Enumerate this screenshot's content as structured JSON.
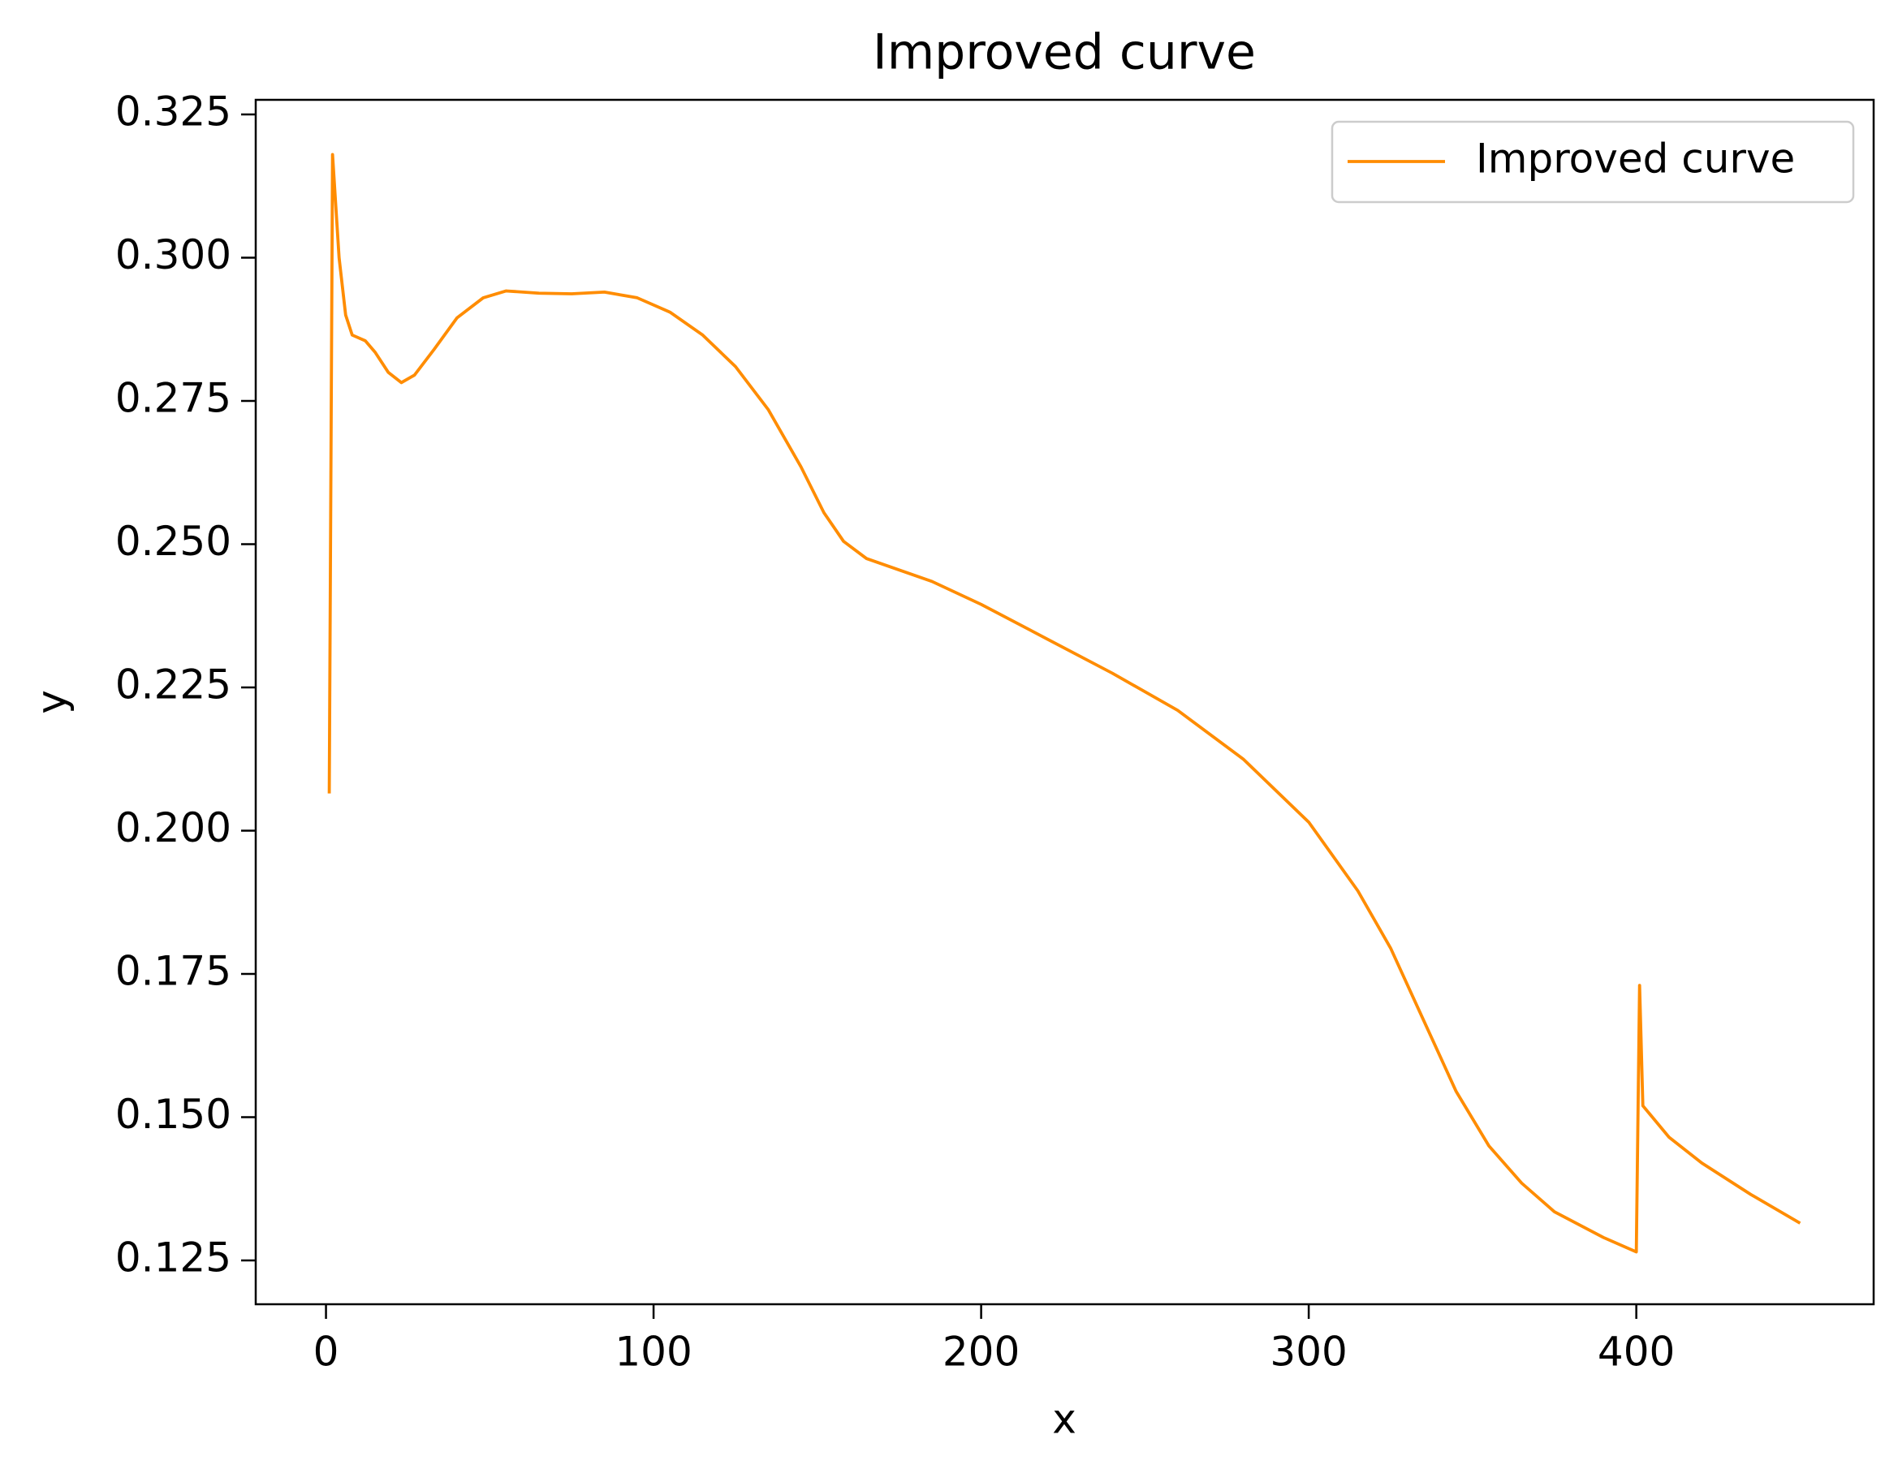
{
  "chart_data": {
    "type": "line",
    "title": "Improved curve",
    "xlabel": "x",
    "ylabel": "y",
    "x": [
      1,
      2,
      4,
      6,
      8,
      12,
      15,
      19,
      23,
      27,
      33,
      40,
      48,
      55,
      65,
      75,
      85,
      95,
      105,
      115,
      125,
      135,
      145,
      152,
      158,
      165,
      175,
      185,
      200,
      220,
      240,
      260,
      280,
      300,
      315,
      325,
      335,
      345,
      355,
      365,
      375,
      390,
      400,
      401,
      402,
      410,
      420,
      435,
      450
    ],
    "series": [
      {
        "name": "Improved curve",
        "color": "#ff8c00",
        "values": [
          0.2065,
          0.318,
          0.3,
          0.29,
          0.2865,
          0.2855,
          0.2835,
          0.28,
          0.2782,
          0.2795,
          0.284,
          0.2895,
          0.293,
          0.2942,
          0.2938,
          0.2937,
          0.294,
          0.293,
          0.2905,
          0.2865,
          0.281,
          0.2735,
          0.2635,
          0.2555,
          0.2505,
          0.2475,
          0.2455,
          0.2435,
          0.2395,
          0.2335,
          0.2275,
          0.221,
          0.2125,
          0.2015,
          0.1895,
          0.1795,
          0.167,
          0.1545,
          0.145,
          0.1385,
          0.1335,
          0.129,
          0.1265,
          0.173,
          0.152,
          0.1465,
          0.142,
          0.1365,
          0.1315
        ]
      }
    ],
    "xlim": [
      -21.45,
      472.45
    ],
    "ylim": [
      0.11736,
      0.32755
    ],
    "xticks": [
      0,
      100,
      200,
      300,
      400
    ],
    "yticks": [
      0.125,
      {
        "value": 0.15,
        "label": "0.150"
      },
      0.175,
      {
        "value": 0.2,
        "label": "0.200"
      },
      0.225,
      {
        "value": 0.25,
        "label": "0.250"
      },
      0.275,
      {
        "value": 0.3,
        "label": "0.300"
      },
      0.325
    ],
    "legend": "upper right",
    "grid": false
  }
}
